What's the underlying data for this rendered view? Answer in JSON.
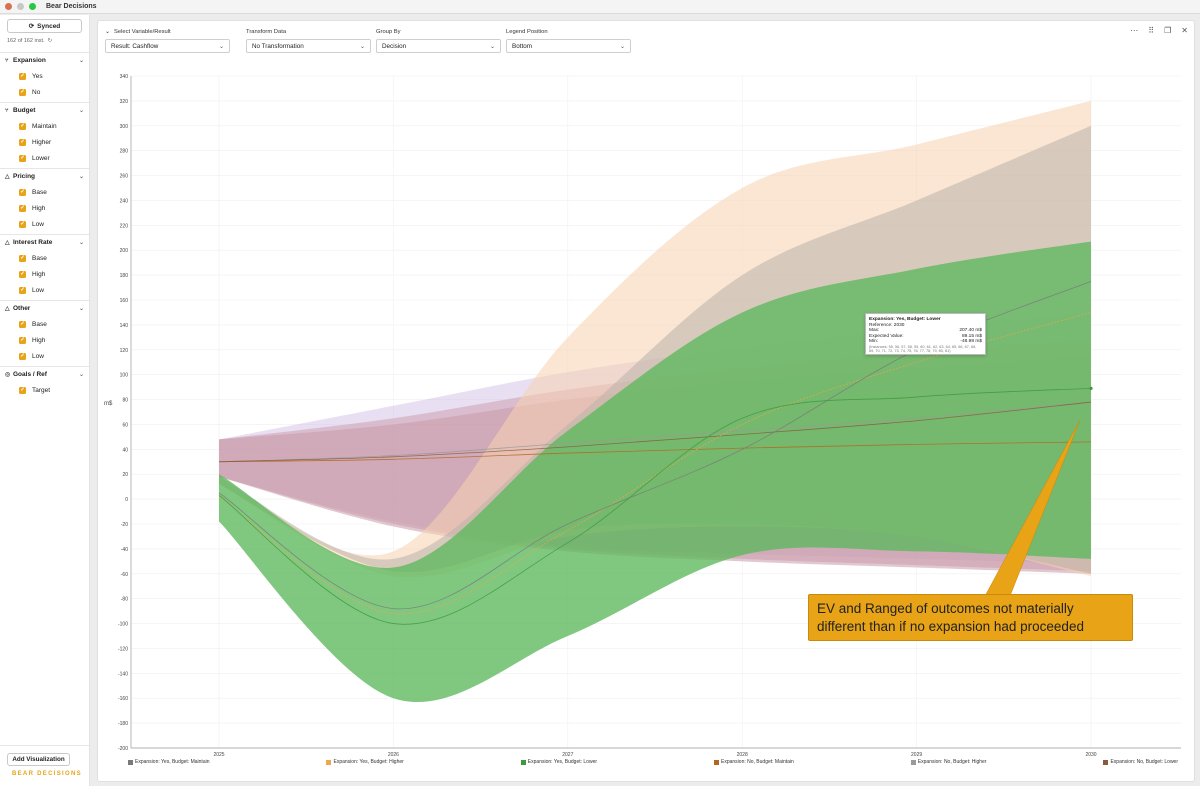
{
  "app": {
    "title": "Bear Decisions",
    "colors": {
      "close": "#ff5f57",
      "minimize": "#c8c8c8",
      "zoom": "#28c840",
      "accent": "#e8a317"
    }
  },
  "sidebar": {
    "sync_label": "Synced",
    "instances": "162 of 162 inst.",
    "groups": [
      {
        "title": "Expansion",
        "icon": "branch-icon",
        "options": [
          "Yes",
          "No"
        ]
      },
      {
        "title": "Budget",
        "icon": "branch-icon",
        "options": [
          "Maintain",
          "Higher",
          "Lower"
        ]
      },
      {
        "title": "Pricing",
        "icon": "warning-triangle-icon",
        "options": [
          "Base",
          "High",
          "Low"
        ]
      },
      {
        "title": "Interest Rate",
        "icon": "warning-triangle-icon",
        "options": [
          "Base",
          "High",
          "Low"
        ]
      },
      {
        "title": "Other",
        "icon": "warning-triangle-icon",
        "options": [
          "Base",
          "High",
          "Low"
        ]
      },
      {
        "title": "Goals / Ref",
        "icon": "target-icon",
        "options": [
          "Target"
        ]
      }
    ],
    "add_viz": "Add Visualization",
    "logo": "BEAR DECISIONS"
  },
  "controls": {
    "variable": {
      "label": "Select Variable/Result",
      "value": "Result: Cashflow"
    },
    "transform": {
      "label": "Transform Data",
      "value": "No Transformation"
    },
    "group_by": {
      "label": "Group By",
      "value": "Decision"
    },
    "legend_pos": {
      "label": "Legend Position",
      "value": "Bottom"
    }
  },
  "chart_data": {
    "type": "area",
    "ylabel": "m$",
    "xlabel": "",
    "x": [
      2025,
      2026,
      2027,
      2028,
      2029,
      2030
    ],
    "x_tick_labels": [
      "2025",
      "2026",
      "2027",
      "2028",
      "2029",
      "2030"
    ],
    "ylim": [
      -200,
      340
    ],
    "y_ticks": [
      -200,
      -180,
      -160,
      -140,
      -120,
      -100,
      -80,
      -60,
      -40,
      -20,
      0,
      20,
      40,
      60,
      80,
      100,
      120,
      140,
      160,
      180,
      200,
      220,
      240,
      260,
      280,
      300,
      320,
      340
    ],
    "grid": true,
    "legend_position": "bottom",
    "series": [
      {
        "name": "Expansion: Yes, Budget: Maintain",
        "color": "#7a7a7a",
        "fill": "#b9b2aa",
        "upper": [
          18,
          -48,
          60,
          180,
          240,
          300
        ],
        "lower": [
          12,
          -58,
          -25,
          -20,
          -30,
          -60
        ],
        "ev": [
          5,
          -88,
          -20,
          40,
          120,
          175
        ]
      },
      {
        "name": "Expansion: Yes, Budget: Higher",
        "color": "#f0a64a",
        "fill": "#f8d2b0",
        "upper": [
          18,
          -42,
          130,
          250,
          285,
          320
        ],
        "lower": [
          12,
          -62,
          -30,
          -22,
          -30,
          -62
        ],
        "ev": [
          2,
          -92,
          -25,
          60,
          110,
          150
        ]
      },
      {
        "name": "Expansion: Yes, Budget: Lower",
        "color": "#3c9a3c",
        "fill": "#5cb85c",
        "upper": [
          20,
          -55,
          55,
          150,
          185,
          207
        ],
        "lower": [
          -18,
          -160,
          -110,
          -45,
          -42,
          -48
        ],
        "ev": [
          3,
          -100,
          -35,
          65,
          82,
          89
        ]
      },
      {
        "name": "Expansion: No, Budget: Maintain",
        "color": "#b5651d",
        "fill": "#cd9fb3",
        "upper": [
          48,
          65,
          88,
          105,
          118,
          128
        ],
        "lower": [
          18,
          -20,
          -40,
          -48,
          -53,
          -58
        ],
        "ev": [
          30,
          32,
          37,
          41,
          44,
          46
        ]
      },
      {
        "name": "Expansion: No, Budget: Higher",
        "color": "#9a9a9a",
        "fill": "#d5c5e8",
        "upper": [
          48,
          75,
          102,
          122,
          137,
          150
        ],
        "lower": [
          18,
          -18,
          -38,
          -44,
          -48,
          -52
        ],
        "ev": [
          30,
          35,
          45,
          55,
          65,
          78
        ]
      },
      {
        "name": "Expansion: No, Budget: Lower",
        "color": "#8b5a3c",
        "fill": "#c89aa8",
        "upper": [
          48,
          60,
          80,
          95,
          105,
          115
        ],
        "lower": [
          18,
          -22,
          -42,
          -50,
          -55,
          -60
        ],
        "ev": [
          30,
          34,
          42,
          52,
          63,
          78
        ]
      }
    ]
  },
  "tooltip": {
    "title": "Expansion: Yes, Budget: Lower",
    "reference": "Reference: 2030",
    "max_label": "Max:",
    "max_value": "207.40 m$",
    "ev_label": "Expected Value:",
    "ev_value": "89.15 m$",
    "min_label": "Min:",
    "min_value": "-48.98 m$",
    "instances": "(Instances: 55, 56, 57, 58, 59, 60, 61, 62, 63, 64, 65, 66, 67, 68, 69, 70, 71, 72, 73, 74, 75, 76, 77, 78, 79, 80, 81)"
  },
  "annotation": {
    "text": "EV and Ranged of outcomes not materially different than if no expansion had proceeded"
  }
}
